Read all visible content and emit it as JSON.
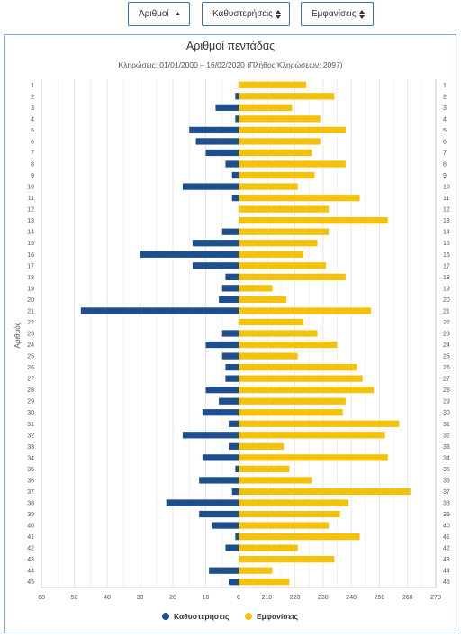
{
  "toolbar": {
    "numbers_label": "Αριθμοί",
    "delays_label": "Καθυστερήσεις",
    "appearances_label": "Εμφανίσεις"
  },
  "colors": {
    "delays": "#1f4e8c",
    "appearances": "#f5c20b",
    "border": "#7fa9d9"
  },
  "chart_data": {
    "type": "bar",
    "orientation": "horizontal",
    "title": "Αριθμοί πεντάδας",
    "subtitle": "Κληρώσεις: 01/01/2000 – 16/02/2020 (Πλήθος Κληρώσεων: 2097)",
    "ylabel": "Αριθμός",
    "categories": [
      "1",
      "2",
      "3",
      "4",
      "5",
      "6",
      "7",
      "8",
      "9",
      "10",
      "11",
      "12",
      "13",
      "14",
      "15",
      "16",
      "17",
      "18",
      "19",
      "20",
      "21",
      "22",
      "23",
      "24",
      "25",
      "26",
      "27",
      "28",
      "29",
      "30",
      "31",
      "32",
      "33",
      "34",
      "35",
      "36",
      "37",
      "38",
      "39",
      "40",
      "41",
      "42",
      "43",
      "44",
      "45"
    ],
    "x_ticks": [
      "60",
      "50",
      "40",
      "30",
      "20",
      "10",
      "0",
      "210",
      "220",
      "230",
      "240",
      "250",
      "260",
      "270"
    ],
    "left_axis": {
      "name": "Καθυστερήσεις",
      "range": [
        60,
        0
      ]
    },
    "right_axis": {
      "name": "Εμφανίσεις",
      "range": [
        200,
        270
      ]
    },
    "series": [
      {
        "name": "Καθυστερήσεις",
        "values": [
          0,
          1,
          7,
          1,
          15,
          13,
          10,
          4,
          2,
          17,
          2,
          0,
          0,
          5,
          14,
          30,
          14,
          4,
          5,
          6,
          48,
          0,
          5,
          10,
          5,
          4,
          4,
          10,
          6,
          11,
          3,
          17,
          3,
          11,
          1,
          12,
          2,
          22,
          12,
          8,
          1,
          4,
          0,
          9,
          3
        ]
      },
      {
        "name": "Εμφανίσεις",
        "values": [
          224,
          234,
          219,
          229,
          238,
          229,
          226,
          238,
          227,
          221,
          243,
          232,
          253,
          232,
          228,
          223,
          231,
          238,
          212,
          217,
          247,
          223,
          228,
          235,
          221,
          242,
          244,
          248,
          238,
          237,
          257,
          252,
          216,
          253,
          218,
          226,
          261,
          239,
          236,
          232,
          243,
          221,
          234,
          212,
          218
        ]
      }
    ]
  },
  "legend": {
    "delays_label": "Καθυστερήσεις",
    "appearances_label": "Εμφανίσεις"
  }
}
